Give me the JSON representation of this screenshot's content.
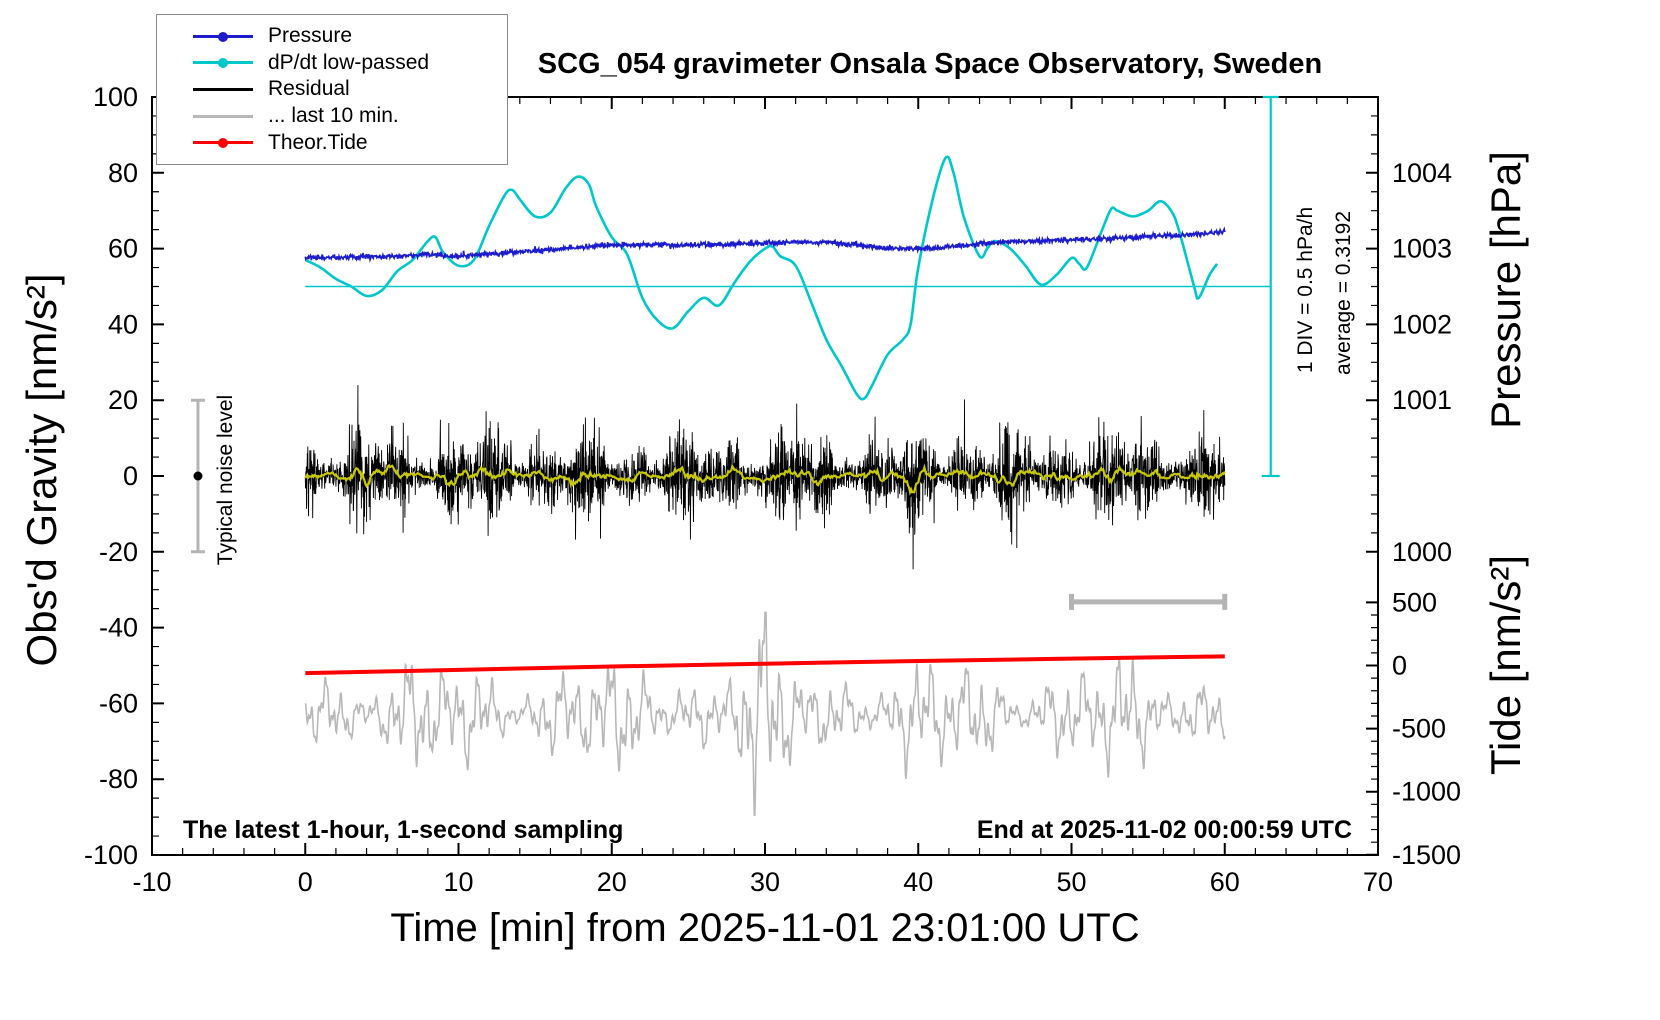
{
  "title": "SCG_054 gravimeter Onsala Space Observatory, Sweden",
  "annotations": {
    "sampling": "The latest 1-hour, 1-second sampling",
    "end_time": "End at 2025-11-02 00:00:59 UTC",
    "noise_level": "Typical noise level",
    "div_scale": "1 DIV = 0.5 hPa/h",
    "average": "average = 0.3192"
  },
  "legend": {
    "entries": [
      {
        "label": "Pressure",
        "color": "#1c1ccd",
        "dot": true
      },
      {
        "label": "dP/dt low-passed",
        "color": "#00c8c8",
        "dot": true
      },
      {
        "label": "Residual",
        "color": "#000000",
        "dot": false
      },
      {
        "label": "... last 10 min.",
        "color": "#b8b8b8",
        "dot": false
      },
      {
        "label": "Theor.Tide",
        "color": "#ff0000",
        "dot": true
      }
    ]
  },
  "chart_data": {
    "type": "line",
    "title": "SCG_054 gravimeter Onsala Space Observatory, Sweden",
    "xlabel": "Time [min] from 2025-11-01 23:01:00 UTC",
    "x_range": [
      -10,
      70
    ],
    "x_major_ticks": [
      -10,
      0,
      10,
      20,
      30,
      40,
      50,
      60,
      70
    ],
    "x_minor_step": 2,
    "axes": {
      "gravity": {
        "label": "Obs'd Gravity [nm/s²]",
        "range": [
          -100,
          100
        ],
        "major_step": 20,
        "minor_step": 5
      },
      "pressure": {
        "label": "Pressure [hPa]",
        "ticks": [
          {
            "label": "1004",
            "gravity": 80
          },
          {
            "label": "1003",
            "gravity": 60
          },
          {
            "label": "1002",
            "gravity": 40
          },
          {
            "label": "1001",
            "gravity": 20
          },
          {
            "label": "1000",
            "gravity": -20
          }
        ],
        "minor_step_gravity": 5
      },
      "tide": {
        "label": "Tide [nm/s²]",
        "ticks": [
          {
            "label": "500",
            "tide": 500
          },
          {
            "label": "0",
            "tide": 0
          },
          {
            "label": "-500",
            "tide": -500
          },
          {
            "label": "-1000",
            "tide": -1000
          },
          {
            "label": "-1500",
            "tide": -1500
          }
        ],
        "zero_at_gravity": -50,
        "gravity_per_tide_unit": 0.0333,
        "minor_step_tide": 100
      }
    },
    "reference_lines": {
      "dpdt_baseline_gravity": 50
    },
    "scale_bars": {
      "dpdt_div_bar": {
        "x_min": 63,
        "gravity_from": 0,
        "gravity_to": 100,
        "color": "#00c8c8"
      },
      "ten_min_bar": {
        "x_from": 50,
        "x_to": 60,
        "gravity": -33.2,
        "color": "#b4b4b4"
      },
      "noise_bar": {
        "x_min": -7,
        "gravity_from": -20,
        "gravity_to": 20,
        "color": "#b4b4b4"
      }
    },
    "series": [
      {
        "name": "Pressure",
        "axis": "pressure",
        "color": "#1c1ccd",
        "noise_hpa": 0.017,
        "points_min_hpa": [
          [
            0,
            1002.875
          ],
          [
            2,
            1002.885
          ],
          [
            4,
            1002.89
          ],
          [
            6,
            1002.9
          ],
          [
            8,
            1002.925
          ],
          [
            10,
            1002.9
          ],
          [
            12,
            1002.93
          ],
          [
            14,
            1002.96
          ],
          [
            16,
            1002.985
          ],
          [
            18,
            1003.02
          ],
          [
            20,
            1003.05
          ],
          [
            22,
            1003.055
          ],
          [
            24,
            1003.05
          ],
          [
            26,
            1003.05
          ],
          [
            28,
            1003.06
          ],
          [
            30,
            1003.07
          ],
          [
            32,
            1003.085
          ],
          [
            34,
            1003.08
          ],
          [
            36,
            1003.05
          ],
          [
            38,
            1003.005
          ],
          [
            40,
            1003.0
          ],
          [
            42,
            1003.02
          ],
          [
            44,
            1003.06
          ],
          [
            46,
            1003.09
          ],
          [
            48,
            1003.1
          ],
          [
            50,
            1003.12
          ],
          [
            52,
            1003.13
          ],
          [
            54,
            1003.15
          ],
          [
            56,
            1003.17
          ],
          [
            58,
            1003.19
          ],
          [
            60,
            1003.22
          ]
        ]
      },
      {
        "name": "dP/dt low-passed",
        "axis": "gravity",
        "color": "#00c8c8",
        "baseline_gravity": 50,
        "points_min_gravity": [
          [
            0,
            57
          ],
          [
            1,
            55
          ],
          [
            2,
            52
          ],
          [
            3,
            50
          ],
          [
            4,
            47.5
          ],
          [
            5,
            49
          ],
          [
            6,
            54
          ],
          [
            7,
            57
          ],
          [
            8,
            62
          ],
          [
            8.5,
            63
          ],
          [
            9,
            59
          ],
          [
            10,
            55.5
          ],
          [
            11,
            57
          ],
          [
            12,
            66
          ],
          [
            13,
            74
          ],
          [
            13.5,
            75.5
          ],
          [
            14,
            73
          ],
          [
            15,
            68.5
          ],
          [
            16,
            69.5
          ],
          [
            17,
            76
          ],
          [
            17.8,
            79
          ],
          [
            18.5,
            77
          ],
          [
            19,
            71
          ],
          [
            20,
            63
          ],
          [
            21,
            58.5
          ],
          [
            22,
            47
          ],
          [
            23,
            41
          ],
          [
            24,
            39
          ],
          [
            25,
            43.5
          ],
          [
            26,
            47
          ],
          [
            27,
            45
          ],
          [
            28,
            51
          ],
          [
            29,
            56.5
          ],
          [
            30,
            60
          ],
          [
            30.5,
            60.5
          ],
          [
            31,
            58
          ],
          [
            32,
            55.5
          ],
          [
            33,
            46
          ],
          [
            34,
            36
          ],
          [
            35,
            29
          ],
          [
            36,
            21.5
          ],
          [
            36.5,
            20.5
          ],
          [
            37,
            24
          ],
          [
            38,
            32
          ],
          [
            39,
            36
          ],
          [
            39.5,
            40
          ],
          [
            40,
            55
          ],
          [
            41,
            74
          ],
          [
            41.8,
            84
          ],
          [
            42.3,
            80
          ],
          [
            43,
            68
          ],
          [
            44,
            58
          ],
          [
            44.5,
            60
          ],
          [
            45,
            62
          ],
          [
            46,
            60
          ],
          [
            47,
            55.5
          ],
          [
            48,
            50.5
          ],
          [
            49,
            53
          ],
          [
            50,
            57.5
          ],
          [
            50.5,
            56
          ],
          [
            51,
            55
          ],
          [
            52,
            65
          ],
          [
            52.6,
            70.5
          ],
          [
            53,
            70
          ],
          [
            54,
            68.5
          ],
          [
            55,
            70
          ],
          [
            55.8,
            72.5
          ],
          [
            56.5,
            70
          ],
          [
            57,
            65
          ],
          [
            58,
            50
          ],
          [
            58.3,
            47
          ],
          [
            59,
            53
          ],
          [
            59.5,
            56
          ]
        ]
      },
      {
        "name": "Residual",
        "axis": "gravity",
        "color": "#000000",
        "noise": {
          "generated": true,
          "seed": 12345,
          "n_seconds": 3600,
          "center": 0,
          "typical_peak": 20,
          "sampling": "1 s"
        }
      },
      {
        "name": "Residual low-passed",
        "axis": "gravity",
        "color": "#c8c800",
        "derived": "moving average of Residual"
      },
      {
        "name": "... last 10 min.",
        "axis": "gravity",
        "color": "#b8b8b8",
        "center_gravity": -63,
        "typical_range": [
          -88,
          -38
        ],
        "generated": true
      },
      {
        "name": "Theor.Tide",
        "axis": "tide",
        "color": "#ff0000",
        "points_min_tide": [
          [
            0,
            -60
          ],
          [
            10,
            -35
          ],
          [
            20,
            -8
          ],
          [
            30,
            14
          ],
          [
            40,
            36
          ],
          [
            50,
            55
          ],
          [
            60,
            72
          ]
        ]
      }
    ]
  }
}
